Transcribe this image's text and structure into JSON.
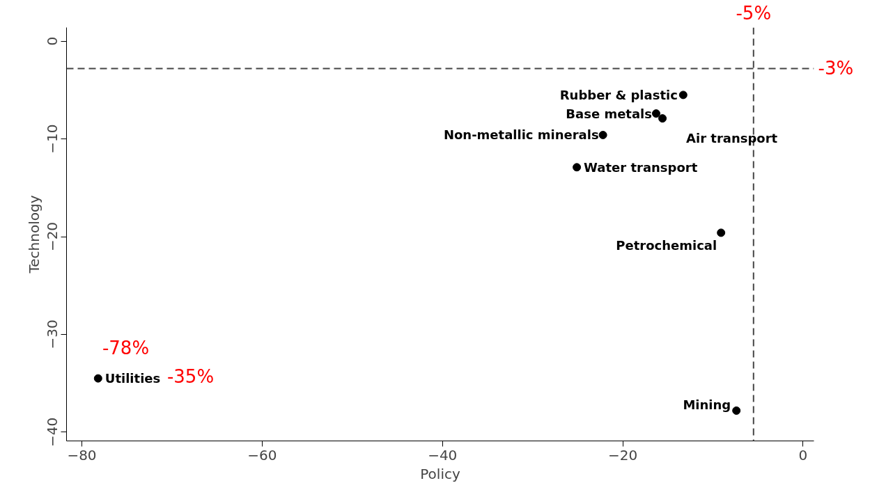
{
  "chart_data": {
    "type": "scatter",
    "xlabel": "Policy",
    "ylabel": "Technology",
    "marker": "circle",
    "grid": false,
    "xlim": [
      -81.7,
      1.2
    ],
    "ylim": [
      -40.9,
      1.4
    ],
    "xticks": [
      -80,
      -60,
      -40,
      -20,
      0
    ],
    "yticks": [
      -40,
      -30,
      -20,
      -10,
      0
    ],
    "series": [
      {
        "name": "Rubber & plastic",
        "color": "#000000",
        "x": [
          -13.3
        ],
        "values": [
          -5.5
        ]
      },
      {
        "name": "Base metals",
        "color": "#000000",
        "x": [
          -16.3
        ],
        "values": [
          -7.4
        ]
      },
      {
        "name": "Air transport",
        "color": "#000000",
        "x": [
          -15.6
        ],
        "values": [
          -7.9
        ]
      },
      {
        "name": "Non-metallic minerals",
        "color": "#000000",
        "x": [
          -22.2
        ],
        "values": [
          -9.6
        ]
      },
      {
        "name": "Water transport",
        "color": "#000000",
        "x": [
          -25.1
        ],
        "values": [
          -12.9
        ]
      },
      {
        "name": "Petrochemical",
        "color": "#000000",
        "x": [
          -9.1
        ],
        "values": [
          -19.6
        ]
      },
      {
        "name": "Mining",
        "color": "#000000",
        "x": [
          -7.4
        ],
        "values": [
          -37.8
        ]
      },
      {
        "name": "Utilities",
        "color": "#000000",
        "x": [
          -78.2
        ],
        "values": [
          -34.5
        ]
      }
    ],
    "ref_lines": [
      {
        "axis": "x",
        "value": -5.5,
        "label": "-5%",
        "color": "#444444",
        "line_style": "dashed"
      },
      {
        "axis": "y",
        "value": -2.8,
        "label": "-3%",
        "color": "#444444",
        "line_style": "dashed"
      }
    ],
    "annotations": [
      "-78%",
      "-35%"
    ]
  }
}
